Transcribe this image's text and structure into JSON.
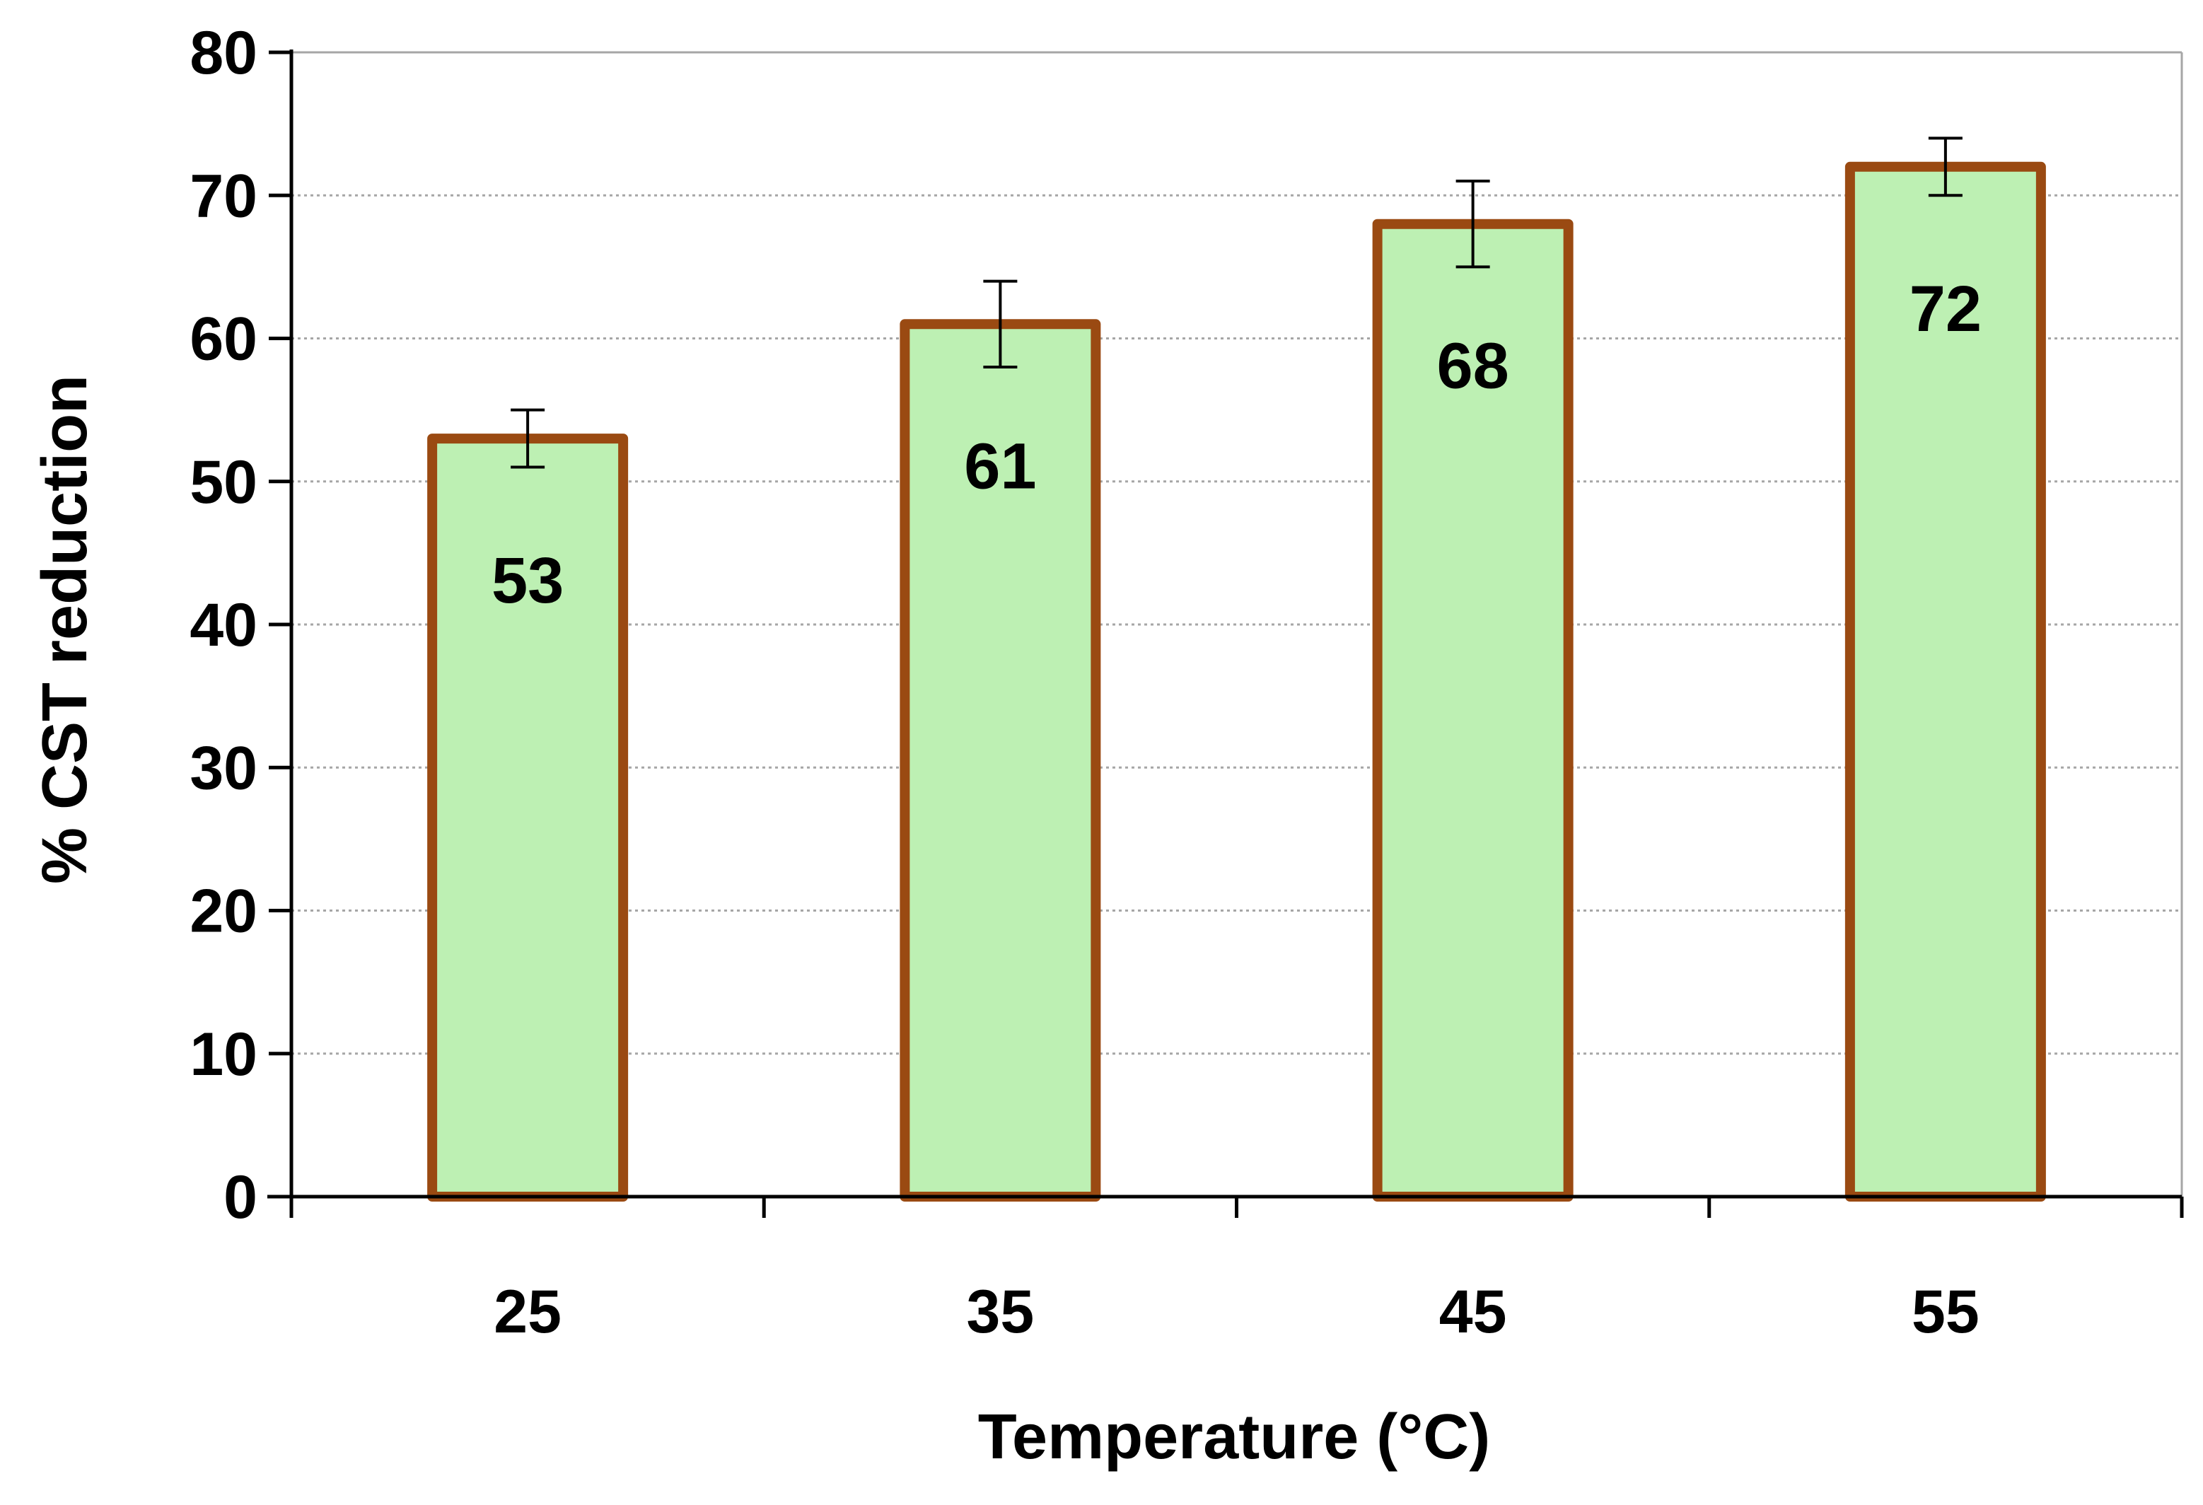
{
  "chart_data": {
    "type": "bar",
    "title": "",
    "xlabel": "Temperature (°C)",
    "ylabel": "% CST reduction",
    "categories": [
      "25",
      "35",
      "45",
      "55"
    ],
    "values": [
      53,
      61,
      68,
      72
    ],
    "error": [
      2,
      3,
      3,
      2
    ],
    "data_labels": [
      "53",
      "61",
      "68",
      "72"
    ],
    "ylim": [
      0,
      80
    ],
    "yticks": [
      "0",
      "10",
      "20",
      "30",
      "40",
      "50",
      "60",
      "70",
      "80"
    ],
    "grid": true,
    "legend": "none",
    "colors": {
      "bar_fill": "#BDF0B3",
      "bar_edge": "#9A4A12",
      "gridline": "#A6A6A6",
      "axis": "#000000",
      "frame": "#A6A6A6",
      "error_bar": "#000000"
    }
  }
}
